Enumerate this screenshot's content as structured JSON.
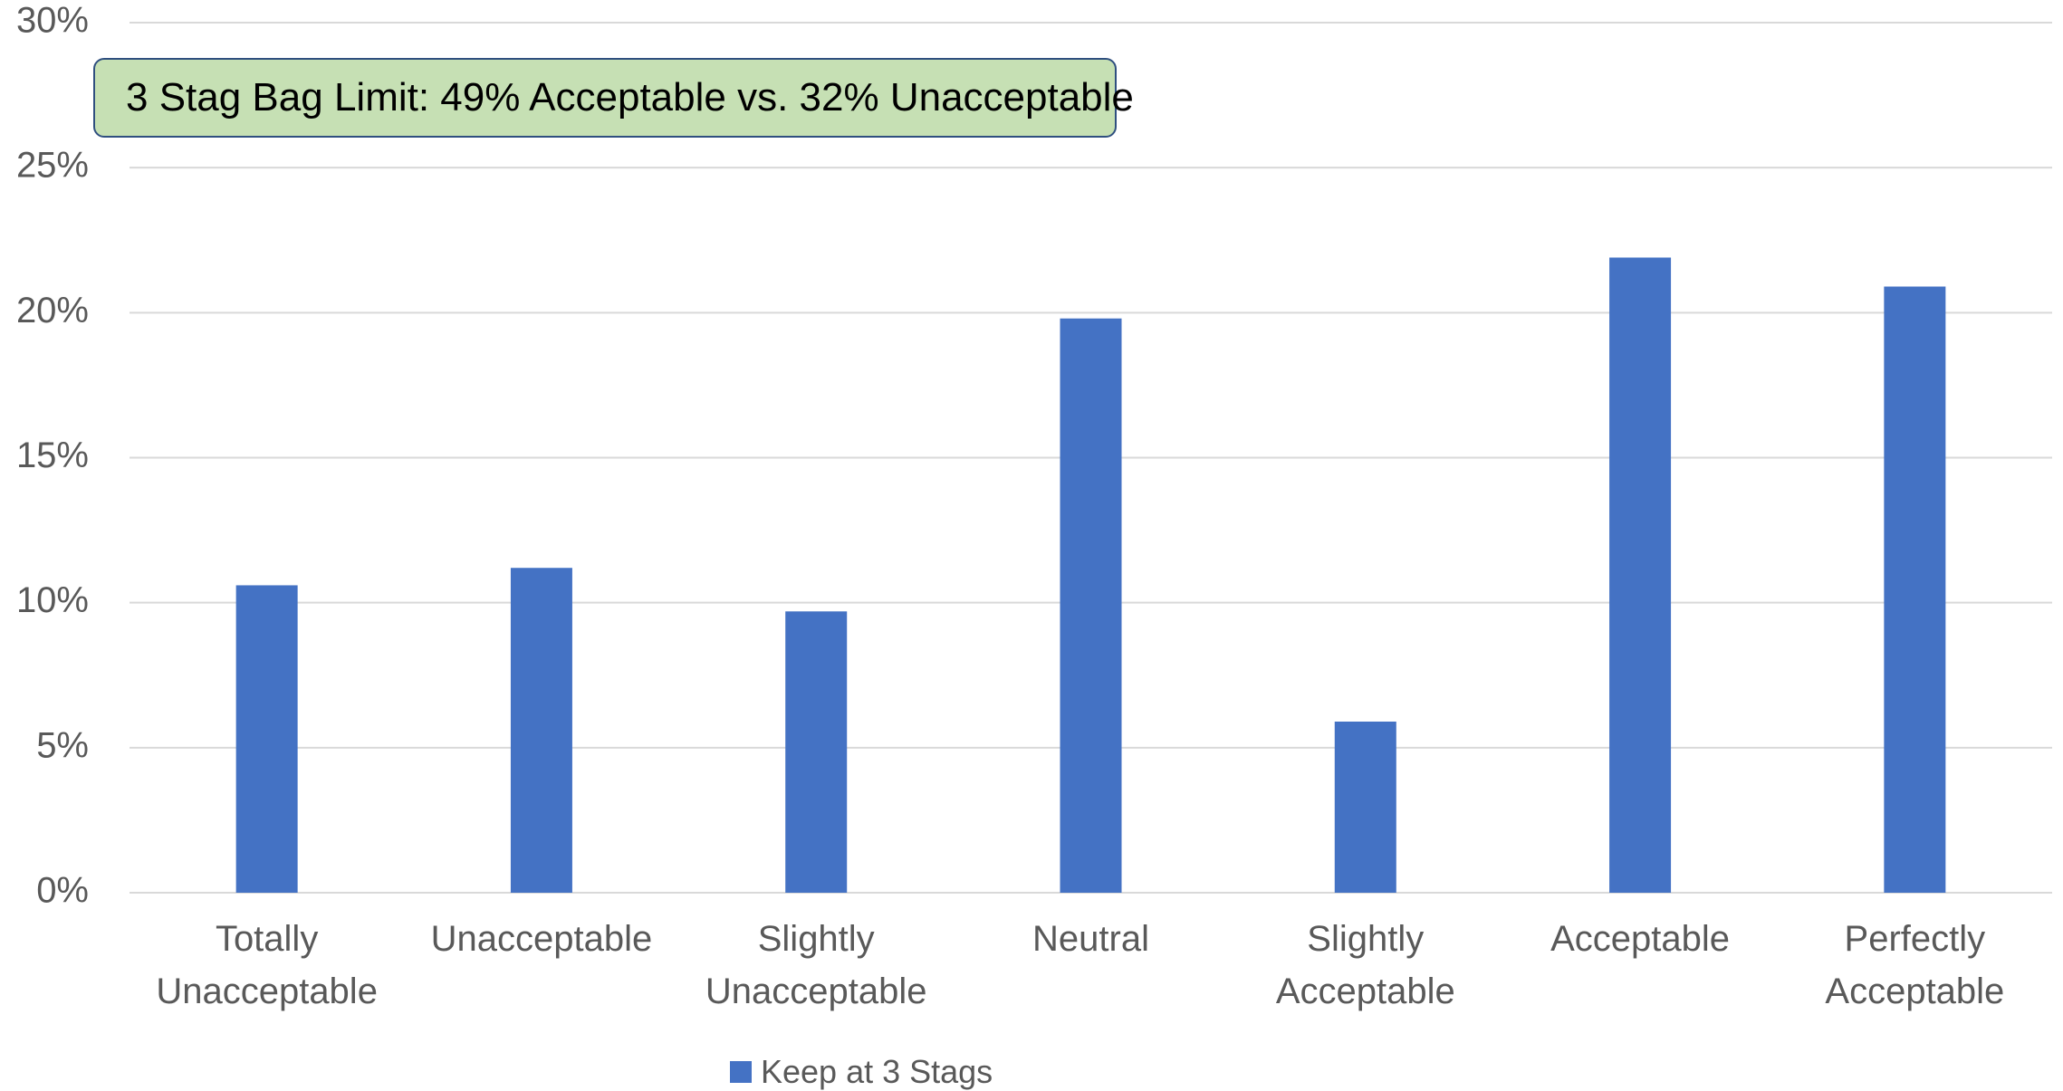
{
  "chart_data": {
    "type": "bar",
    "categories": [
      [
        "Totally",
        "Unacceptable"
      ],
      [
        "Unacceptable"
      ],
      [
        "Slightly",
        "Unacceptable"
      ],
      [
        "Neutral"
      ],
      [
        "Slightly",
        "Acceptable"
      ],
      [
        "Acceptable"
      ],
      [
        "Perfectly",
        "Acceptable"
      ]
    ],
    "series": [
      {
        "name": "Keep at 3 Stags",
        "values": [
          10.6,
          11.2,
          9.7,
          19.8,
          5.9,
          21.9,
          20.9
        ]
      }
    ],
    "title": "",
    "xlabel": "",
    "ylabel": "",
    "ylim": [
      0,
      30
    ],
    "yticks": [
      "0%",
      "5%",
      "10%",
      "15%",
      "20%",
      "25%",
      "30%"
    ],
    "grid": true,
    "legend_position": "bottom",
    "annotation": "3 Stag Bag Limit: 49% Acceptable vs. 32% Unacceptable",
    "colors": {
      "bar": "#4472c4",
      "grid": "#d9d9d9",
      "annotation_fill": "#c6e0b4",
      "annotation_border": "#2f4f7f"
    }
  }
}
